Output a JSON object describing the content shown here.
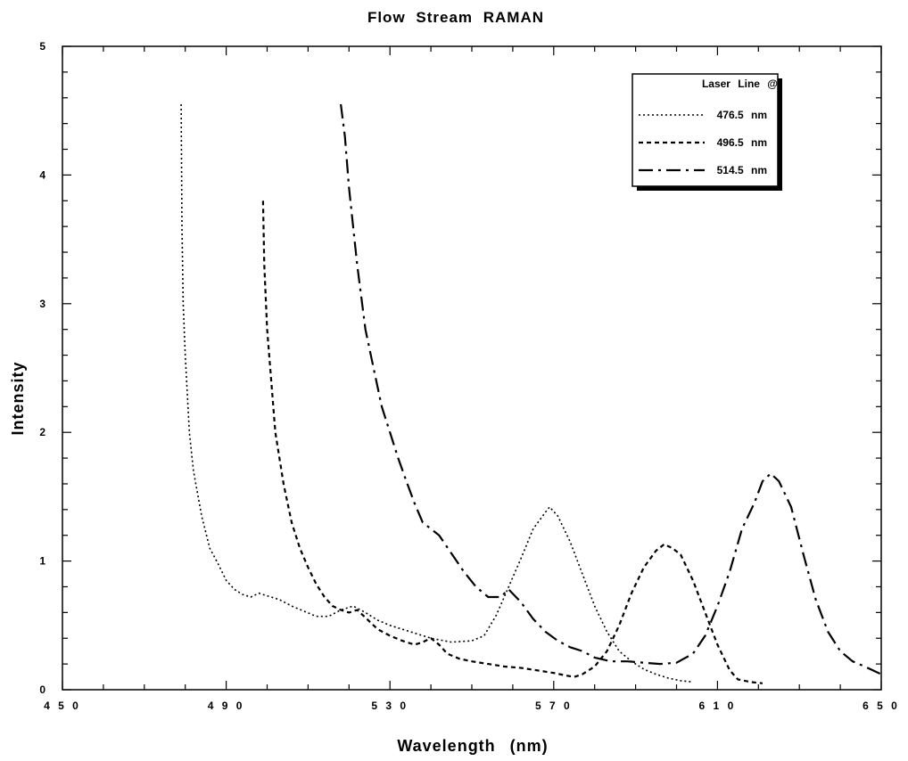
{
  "chart_data": {
    "type": "line",
    "title": "Flow Stream RAMAN",
    "xlabel": "Wavelength (nm)",
    "ylabel": "Intensity",
    "xlim": [
      450,
      650
    ],
    "ylim": [
      0,
      5
    ],
    "x_ticks": [
      450,
      490,
      530,
      570,
      610,
      650
    ],
    "x_tick_labels": [
      "4 5 0",
      "4 9 0",
      "5 3 0",
      "5 7 0",
      "6 1 0",
      "6 5 0"
    ],
    "y_ticks": [
      0,
      1,
      2,
      3,
      4,
      5
    ],
    "y_tick_labels": [
      "0",
      "1",
      "2",
      "3",
      "4",
      "5"
    ],
    "grid": false,
    "legend": {
      "title": "Laser Line @",
      "placement": "top-right",
      "entries": [
        "476.5 nm",
        "496.5 nm",
        "514.5 nm"
      ]
    },
    "series": [
      {
        "name": "476.5 nm",
        "style": "dotted",
        "color": "#000000",
        "points": [
          [
            479,
            4.55
          ],
          [
            479.2,
            3.6
          ],
          [
            479.5,
            3.0
          ],
          [
            480,
            2.6
          ],
          [
            481,
            2.0
          ],
          [
            482,
            1.7
          ],
          [
            484,
            1.35
          ],
          [
            486,
            1.1
          ],
          [
            488,
            0.98
          ],
          [
            490,
            0.85
          ],
          [
            492,
            0.78
          ],
          [
            494,
            0.74
          ],
          [
            496,
            0.72
          ],
          [
            498,
            0.75
          ],
          [
            500,
            0.73
          ],
          [
            503,
            0.7
          ],
          [
            506,
            0.65
          ],
          [
            509,
            0.61
          ],
          [
            512,
            0.57
          ],
          [
            515,
            0.57
          ],
          [
            518,
            0.62
          ],
          [
            521,
            0.65
          ],
          [
            524,
            0.6
          ],
          [
            527,
            0.54
          ],
          [
            530,
            0.5
          ],
          [
            535,
            0.45
          ],
          [
            540,
            0.4
          ],
          [
            545,
            0.37
          ],
          [
            550,
            0.38
          ],
          [
            553,
            0.42
          ],
          [
            556,
            0.58
          ],
          [
            559,
            0.8
          ],
          [
            562,
            1.02
          ],
          [
            565,
            1.25
          ],
          [
            568,
            1.38
          ],
          [
            569,
            1.42
          ],
          [
            571,
            1.35
          ],
          [
            574,
            1.15
          ],
          [
            577,
            0.9
          ],
          [
            580,
            0.65
          ],
          [
            583,
            0.45
          ],
          [
            586,
            0.3
          ],
          [
            589,
            0.22
          ],
          [
            592,
            0.16
          ],
          [
            595,
            0.12
          ],
          [
            598,
            0.09
          ],
          [
            601,
            0.07
          ],
          [
            604,
            0.06
          ]
        ]
      },
      {
        "name": "496.5 nm",
        "style": "dashed",
        "color": "#000000",
        "points": [
          [
            499,
            3.8
          ],
          [
            499.3,
            3.3
          ],
          [
            500,
            2.8
          ],
          [
            501,
            2.4
          ],
          [
            502,
            2.0
          ],
          [
            504,
            1.6
          ],
          [
            506,
            1.3
          ],
          [
            508,
            1.1
          ],
          [
            510,
            0.95
          ],
          [
            512,
            0.82
          ],
          [
            514,
            0.72
          ],
          [
            516,
            0.65
          ],
          [
            518,
            0.62
          ],
          [
            520,
            0.6
          ],
          [
            522,
            0.62
          ],
          [
            524,
            0.56
          ],
          [
            527,
            0.47
          ],
          [
            530,
            0.42
          ],
          [
            533,
            0.38
          ],
          [
            536,
            0.35
          ],
          [
            538,
            0.37
          ],
          [
            540,
            0.4
          ],
          [
            542,
            0.35
          ],
          [
            544,
            0.28
          ],
          [
            547,
            0.24
          ],
          [
            550,
            0.22
          ],
          [
            554,
            0.2
          ],
          [
            558,
            0.18
          ],
          [
            562,
            0.17
          ],
          [
            566,
            0.15
          ],
          [
            570,
            0.13
          ],
          [
            573,
            0.11
          ],
          [
            575,
            0.1
          ],
          [
            577,
            0.12
          ],
          [
            580,
            0.18
          ],
          [
            583,
            0.3
          ],
          [
            586,
            0.5
          ],
          [
            589,
            0.75
          ],
          [
            592,
            0.95
          ],
          [
            595,
            1.08
          ],
          [
            597,
            1.13
          ],
          [
            599,
            1.1
          ],
          [
            601,
            1.05
          ],
          [
            604,
            0.85
          ],
          [
            607,
            0.6
          ],
          [
            610,
            0.35
          ],
          [
            613,
            0.15
          ],
          [
            615,
            0.08
          ],
          [
            618,
            0.06
          ],
          [
            621,
            0.05
          ]
        ]
      },
      {
        "name": "514.5 nm",
        "style": "dash-dot",
        "color": "#000000",
        "points": [
          [
            518,
            4.55
          ],
          [
            519,
            4.3
          ],
          [
            520,
            3.9
          ],
          [
            522,
            3.3
          ],
          [
            524,
            2.8
          ],
          [
            526,
            2.5
          ],
          [
            528,
            2.2
          ],
          [
            530,
            2.0
          ],
          [
            532,
            1.8
          ],
          [
            534,
            1.62
          ],
          [
            536,
            1.45
          ],
          [
            538,
            1.3
          ],
          [
            540,
            1.25
          ],
          [
            542,
            1.2
          ],
          [
            545,
            1.06
          ],
          [
            548,
            0.92
          ],
          [
            551,
            0.8
          ],
          [
            554,
            0.72
          ],
          [
            557,
            0.72
          ],
          [
            559,
            0.78
          ],
          [
            562,
            0.68
          ],
          [
            565,
            0.55
          ],
          [
            568,
            0.45
          ],
          [
            571,
            0.38
          ],
          [
            574,
            0.33
          ],
          [
            577,
            0.3
          ],
          [
            580,
            0.25
          ],
          [
            584,
            0.22
          ],
          [
            588,
            0.22
          ],
          [
            592,
            0.21
          ],
          [
            596,
            0.2
          ],
          [
            600,
            0.21
          ],
          [
            604,
            0.28
          ],
          [
            607,
            0.42
          ],
          [
            610,
            0.65
          ],
          [
            613,
            0.92
          ],
          [
            616,
            1.25
          ],
          [
            619,
            1.45
          ],
          [
            621,
            1.62
          ],
          [
            623,
            1.68
          ],
          [
            625,
            1.62
          ],
          [
            628,
            1.42
          ],
          [
            631,
            1.05
          ],
          [
            634,
            0.7
          ],
          [
            637,
            0.45
          ],
          [
            640,
            0.3
          ],
          [
            643,
            0.22
          ],
          [
            646,
            0.18
          ],
          [
            650,
            0.12
          ]
        ]
      }
    ]
  }
}
